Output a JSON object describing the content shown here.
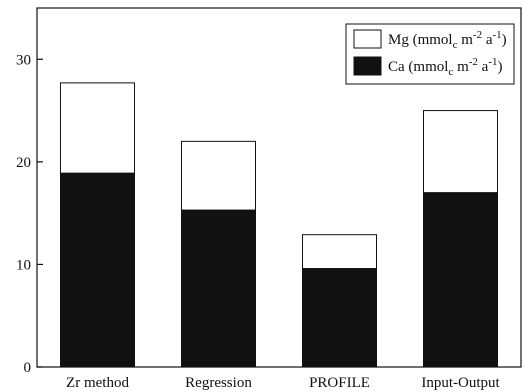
{
  "chart_data": {
    "type": "bar",
    "stacked": true,
    "categories": [
      "Zr method",
      "Regression",
      "PROFILE",
      "Input-Output"
    ],
    "series": [
      {
        "name": "Ca (mmol c m-2 a-1)",
        "color": "#111111",
        "values": [
          18.9,
          15.3,
          9.6,
          17.0
        ]
      },
      {
        "name": "Mg (mmol c m-2 a-1)",
        "color": "#ffffff",
        "values": [
          8.8,
          6.7,
          3.3,
          8.0
        ]
      }
    ],
    "title": "",
    "xlabel": "",
    "ylabel": "",
    "ylim": [
      0,
      35
    ],
    "yticks": [
      0,
      10,
      20,
      30
    ],
    "grid": false,
    "legend": {
      "position": "top-right",
      "entries": [
        {
          "base": "Mg (mmol",
          "sub": "c",
          "mid": " m",
          "sup1": "-2",
          "mid2": " a",
          "sup2": "-1",
          "end": ")",
          "fill": "#ffffff"
        },
        {
          "base": "Ca (mmol",
          "sub": "c",
          "mid": " m",
          "sup1": "-2",
          "mid2": " a",
          "sup2": "-1",
          "end": ")",
          "fill": "#111111"
        }
      ]
    }
  }
}
